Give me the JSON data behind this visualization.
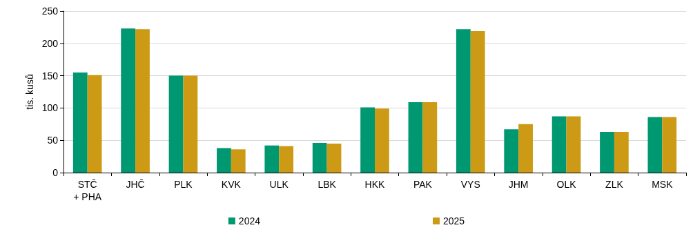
{
  "chart_data": {
    "type": "bar",
    "ylabel": "tis. kusů",
    "categories": [
      "STČ\n+ PHA",
      "JHČ",
      "PLK",
      "KVK",
      "ULK",
      "LBK",
      "HKK",
      "PAK",
      "VYS",
      "JHM",
      "OLK",
      "ZLK",
      "MSK"
    ],
    "series": [
      {
        "name": "2024",
        "color": "#009870",
        "values": [
          155,
          223,
          150,
          38,
          42,
          46,
          101,
          109,
          222,
          67,
          87,
          63,
          86
        ]
      },
      {
        "name": "2025",
        "color": "#cc9a14",
        "values": [
          151,
          222,
          150,
          36,
          41,
          45,
          99,
          109,
          219,
          75,
          87,
          63,
          86
        ]
      }
    ],
    "ylim": [
      0,
      250
    ],
    "yticks": [
      0,
      50,
      100,
      150,
      200,
      250
    ],
    "grid": "y",
    "legend": "bottom"
  }
}
